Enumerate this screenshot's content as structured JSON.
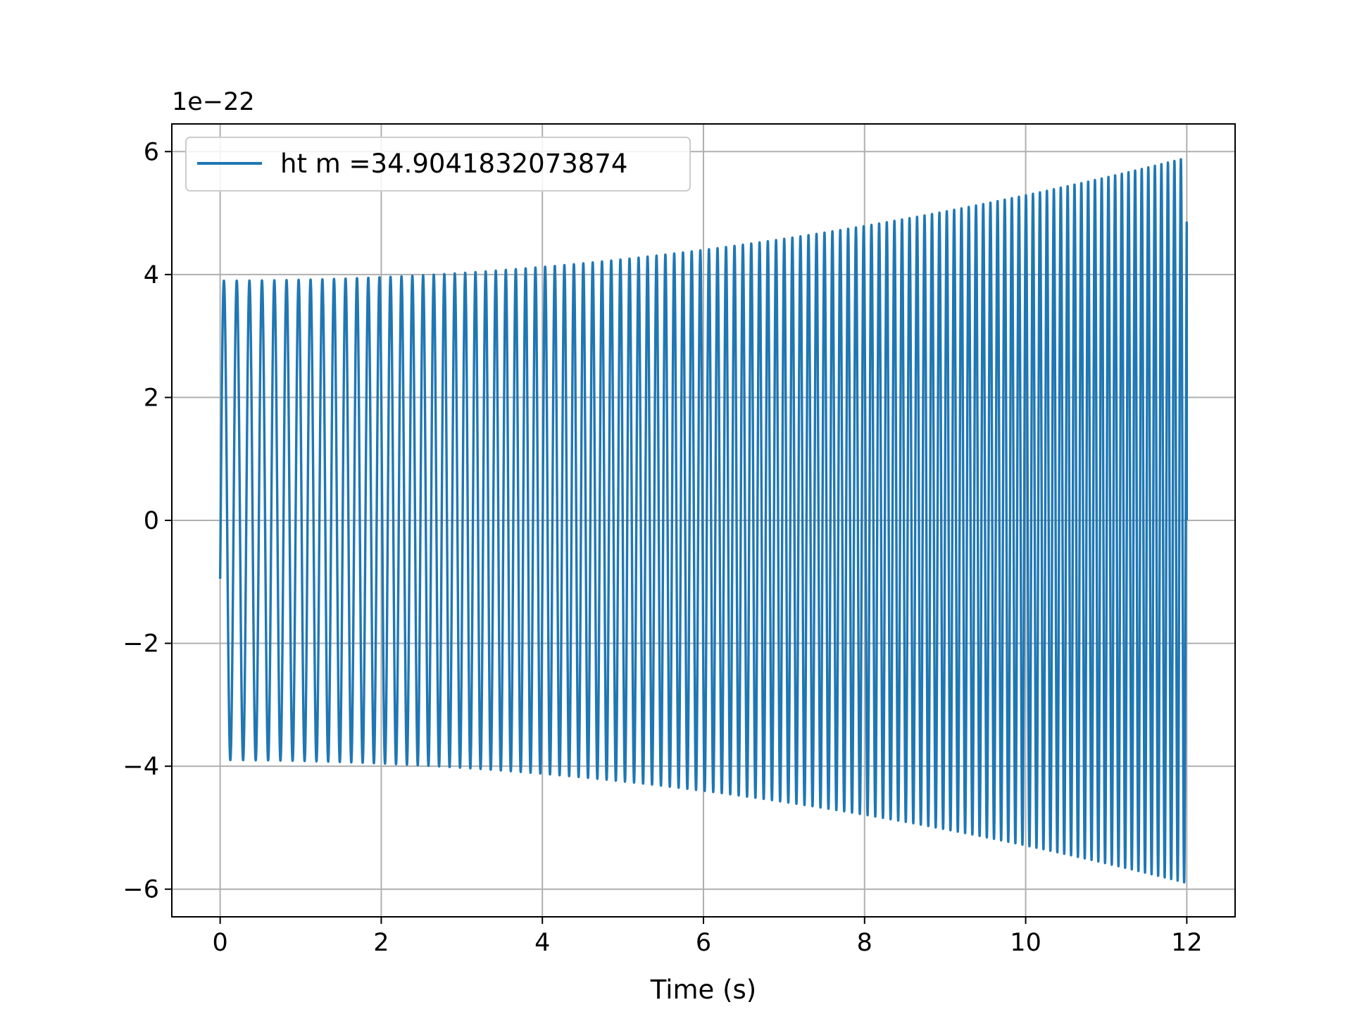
{
  "chart_data": {
    "type": "line",
    "title": "",
    "xlabel": "Time (s)",
    "ylabel": "",
    "offset_text": "1e−22",
    "xlim": [
      -0.6,
      12.6
    ],
    "ylim": [
      -6.45,
      6.45
    ],
    "x_ticks": [
      0,
      2,
      4,
      6,
      8,
      10,
      12
    ],
    "x_tick_labels": [
      "0",
      "2",
      "4",
      "6",
      "8",
      "10",
      "12"
    ],
    "y_ticks": [
      -6,
      -4,
      -2,
      0,
      2,
      4,
      6
    ],
    "y_tick_labels": [
      "−6",
      "−4",
      "−2",
      "0",
      "2",
      "4",
      "6"
    ],
    "grid": true,
    "legend": {
      "position": "top-left"
    },
    "series": [
      {
        "name": "ht m =34.9041832073874",
        "color": "#1f77b4",
        "t_start": 0,
        "t_end": 12,
        "amplitude_start": 3.9,
        "amplitude_end": 5.9,
        "initial_value": -0.95,
        "frequency_start_hz": 6.2,
        "frequency_end_hz": 12.5,
        "envelope_samples": [
          {
            "t": 0.1,
            "amp": 3.9
          },
          {
            "t": 2,
            "amp": 4.0
          },
          {
            "t": 4,
            "amp": 4.2
          },
          {
            "t": 6,
            "amp": 4.45
          },
          {
            "t": 8,
            "amp": 4.7
          },
          {
            "t": 10,
            "amp": 5.1
          },
          {
            "t": 11.9,
            "amp": 5.9
          }
        ]
      }
    ]
  }
}
